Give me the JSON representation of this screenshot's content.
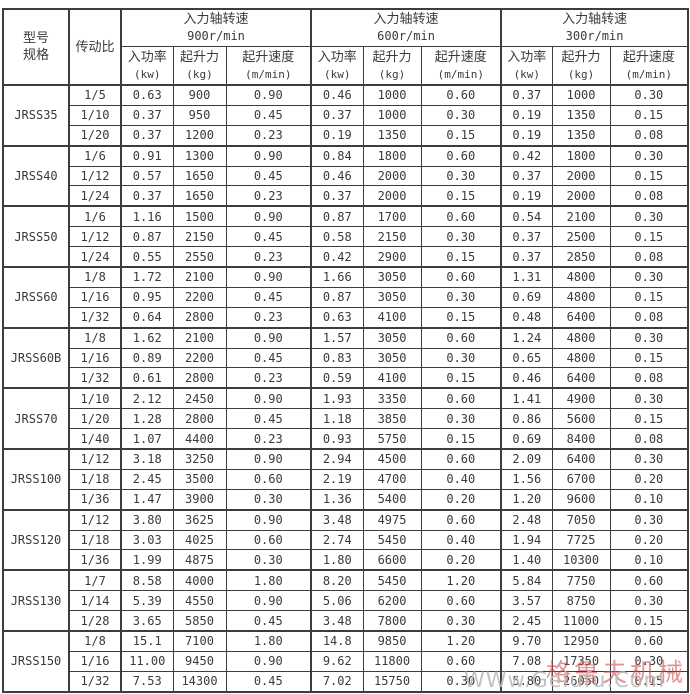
{
  "page": {
    "background": "#ffffff",
    "text_color": "#3a3a3a",
    "border_color": "#3d3d3d"
  },
  "header": {
    "model_label_line1": "型号",
    "model_label_line2": "规格",
    "ratio_label": "传动比",
    "speed_groups": [
      {
        "title": "入力轴转速",
        "subtitle": "900r/min"
      },
      {
        "title": "入力轴转速",
        "subtitle": "600r/min"
      },
      {
        "title": "入力轴转速",
        "subtitle": "300r/min"
      }
    ],
    "sub_columns": [
      {
        "name": "入功率",
        "unit": "(kw)"
      },
      {
        "name": "起升力",
        "unit": "(kg)"
      },
      {
        "name": "起升速度",
        "unit": "(m/min)"
      }
    ]
  },
  "models": [
    {
      "name": "JRSS35",
      "rows": [
        {
          "ratio": "1/5",
          "cells": [
            "0.63",
            "900",
            "0.90",
            "0.46",
            "1000",
            "0.60",
            "0.37",
            "1000",
            "0.30"
          ]
        },
        {
          "ratio": "1/10",
          "cells": [
            "0.37",
            "950",
            "0.45",
            "0.37",
            "1000",
            "0.30",
            "0.19",
            "1350",
            "0.15"
          ]
        },
        {
          "ratio": "1/20",
          "cells": [
            "0.37",
            "1200",
            "0.23",
            "0.19",
            "1350",
            "0.15",
            "0.19",
            "1350",
            "0.08"
          ]
        }
      ]
    },
    {
      "name": "JRSS40",
      "rows": [
        {
          "ratio": "1/6",
          "cells": [
            "0.91",
            "1300",
            "0.90",
            "0.84",
            "1800",
            "0.60",
            "0.42",
            "1800",
            "0.30"
          ]
        },
        {
          "ratio": "1/12",
          "cells": [
            "0.57",
            "1650",
            "0.45",
            "0.46",
            "2000",
            "0.30",
            "0.37",
            "2000",
            "0.15"
          ]
        },
        {
          "ratio": "1/24",
          "cells": [
            "0.37",
            "1650",
            "0.23",
            "0.37",
            "2000",
            "0.15",
            "0.19",
            "2000",
            "0.08"
          ]
        }
      ]
    },
    {
      "name": "JRSS50",
      "rows": [
        {
          "ratio": "1/6",
          "cells": [
            "1.16",
            "1500",
            "0.90",
            "0.87",
            "1700",
            "0.60",
            "0.54",
            "2100",
            "0.30"
          ]
        },
        {
          "ratio": "1/12",
          "cells": [
            "0.87",
            "2150",
            "0.45",
            "0.58",
            "2150",
            "0.30",
            "0.37",
            "2500",
            "0.15"
          ]
        },
        {
          "ratio": "1/24",
          "cells": [
            "0.55",
            "2550",
            "0.23",
            "0.42",
            "2900",
            "0.15",
            "0.37",
            "2850",
            "0.08"
          ]
        }
      ]
    },
    {
      "name": "JRSS60",
      "rows": [
        {
          "ratio": "1/8",
          "cells": [
            "1.72",
            "2100",
            "0.90",
            "1.66",
            "3050",
            "0.60",
            "1.31",
            "4800",
            "0.30"
          ]
        },
        {
          "ratio": "1/16",
          "cells": [
            "0.95",
            "2200",
            "0.45",
            "0.87",
            "3050",
            "0.30",
            "0.69",
            "4800",
            "0.15"
          ]
        },
        {
          "ratio": "1/32",
          "cells": [
            "0.64",
            "2800",
            "0.23",
            "0.63",
            "4100",
            "0.15",
            "0.48",
            "6400",
            "0.08"
          ]
        }
      ]
    },
    {
      "name": "JRSS60B",
      "rows": [
        {
          "ratio": "1/8",
          "cells": [
            "1.62",
            "2100",
            "0.90",
            "1.57",
            "3050",
            "0.60",
            "1.24",
            "4800",
            "0.30"
          ]
        },
        {
          "ratio": "1/16",
          "cells": [
            "0.89",
            "2200",
            "0.45",
            "0.83",
            "3050",
            "0.30",
            "0.65",
            "4800",
            "0.15"
          ]
        },
        {
          "ratio": "1/32",
          "cells": [
            "0.61",
            "2800",
            "0.23",
            "0.59",
            "4100",
            "0.15",
            "0.46",
            "6400",
            "0.08"
          ]
        }
      ]
    },
    {
      "name": "JRSS70",
      "rows": [
        {
          "ratio": "1/10",
          "cells": [
            "2.12",
            "2450",
            "0.90",
            "1.93",
            "3350",
            "0.60",
            "1.41",
            "4900",
            "0.30"
          ]
        },
        {
          "ratio": "1/20",
          "cells": [
            "1.28",
            "2800",
            "0.45",
            "1.18",
            "3850",
            "0.30",
            "0.86",
            "5600",
            "0.15"
          ]
        },
        {
          "ratio": "1/40",
          "cells": [
            "1.07",
            "4400",
            "0.23",
            "0.93",
            "5750",
            "0.15",
            "0.69",
            "8400",
            "0.08"
          ]
        }
      ]
    },
    {
      "name": "JRSS100",
      "rows": [
        {
          "ratio": "1/12",
          "cells": [
            "3.18",
            "3250",
            "0.90",
            "2.94",
            "4500",
            "0.60",
            "2.09",
            "6400",
            "0.30"
          ]
        },
        {
          "ratio": "1/18",
          "cells": [
            "2.45",
            "3500",
            "0.60",
            "2.19",
            "4700",
            "0.40",
            "1.56",
            "6700",
            "0.20"
          ]
        },
        {
          "ratio": "1/36",
          "cells": [
            "1.47",
            "3900",
            "0.30",
            "1.36",
            "5400",
            "0.20",
            "1.20",
            "9600",
            "0.10"
          ]
        }
      ]
    },
    {
      "name": "JRSS120",
      "rows": [
        {
          "ratio": "1/12",
          "cells": [
            "3.80",
            "3625",
            "0.90",
            "3.48",
            "4975",
            "0.60",
            "2.48",
            "7050",
            "0.30"
          ]
        },
        {
          "ratio": "1/18",
          "cells": [
            "3.03",
            "4025",
            "0.60",
            "2.74",
            "5450",
            "0.40",
            "1.94",
            "7725",
            "0.20"
          ]
        },
        {
          "ratio": "1/36",
          "cells": [
            "1.99",
            "4875",
            "0.30",
            "1.80",
            "6600",
            "0.20",
            "1.40",
            "10300",
            "0.10"
          ]
        }
      ]
    },
    {
      "name": "JRSS130",
      "rows": [
        {
          "ratio": "1/7",
          "cells": [
            "8.58",
            "4000",
            "1.80",
            "8.20",
            "5450",
            "1.20",
            "5.84",
            "7750",
            "0.60"
          ]
        },
        {
          "ratio": "1/14",
          "cells": [
            "5.39",
            "4550",
            "0.90",
            "5.06",
            "6200",
            "0.60",
            "3.57",
            "8750",
            "0.30"
          ]
        },
        {
          "ratio": "1/28",
          "cells": [
            "3.65",
            "5850",
            "0.45",
            "3.48",
            "7800",
            "0.30",
            "2.45",
            "11000",
            "0.15"
          ]
        }
      ]
    },
    {
      "name": "JRSS150",
      "rows": [
        {
          "ratio": "1/8",
          "cells": [
            "15.1",
            "7100",
            "1.80",
            "14.8",
            "9850",
            "1.20",
            "9.70",
            "12950",
            "0.60"
          ]
        },
        {
          "ratio": "1/16",
          "cells": [
            "11.00",
            "9450",
            "0.90",
            "9.62",
            "11800",
            "0.60",
            "7.08",
            "17350",
            "0.30"
          ]
        },
        {
          "ratio": "1/32",
          "cells": [
            "7.53",
            "14300",
            "0.45",
            "7.02",
            "15750",
            "0.30",
            "5.80",
            "26050",
            "0.15"
          ]
        }
      ]
    }
  ],
  "watermark": {
    "brand_cn": "格鲁夫机械",
    "url": "WWw.Gelufu.Com",
    "brand_color": "#cf4d4d",
    "url_color": "#bbbbbb"
  }
}
